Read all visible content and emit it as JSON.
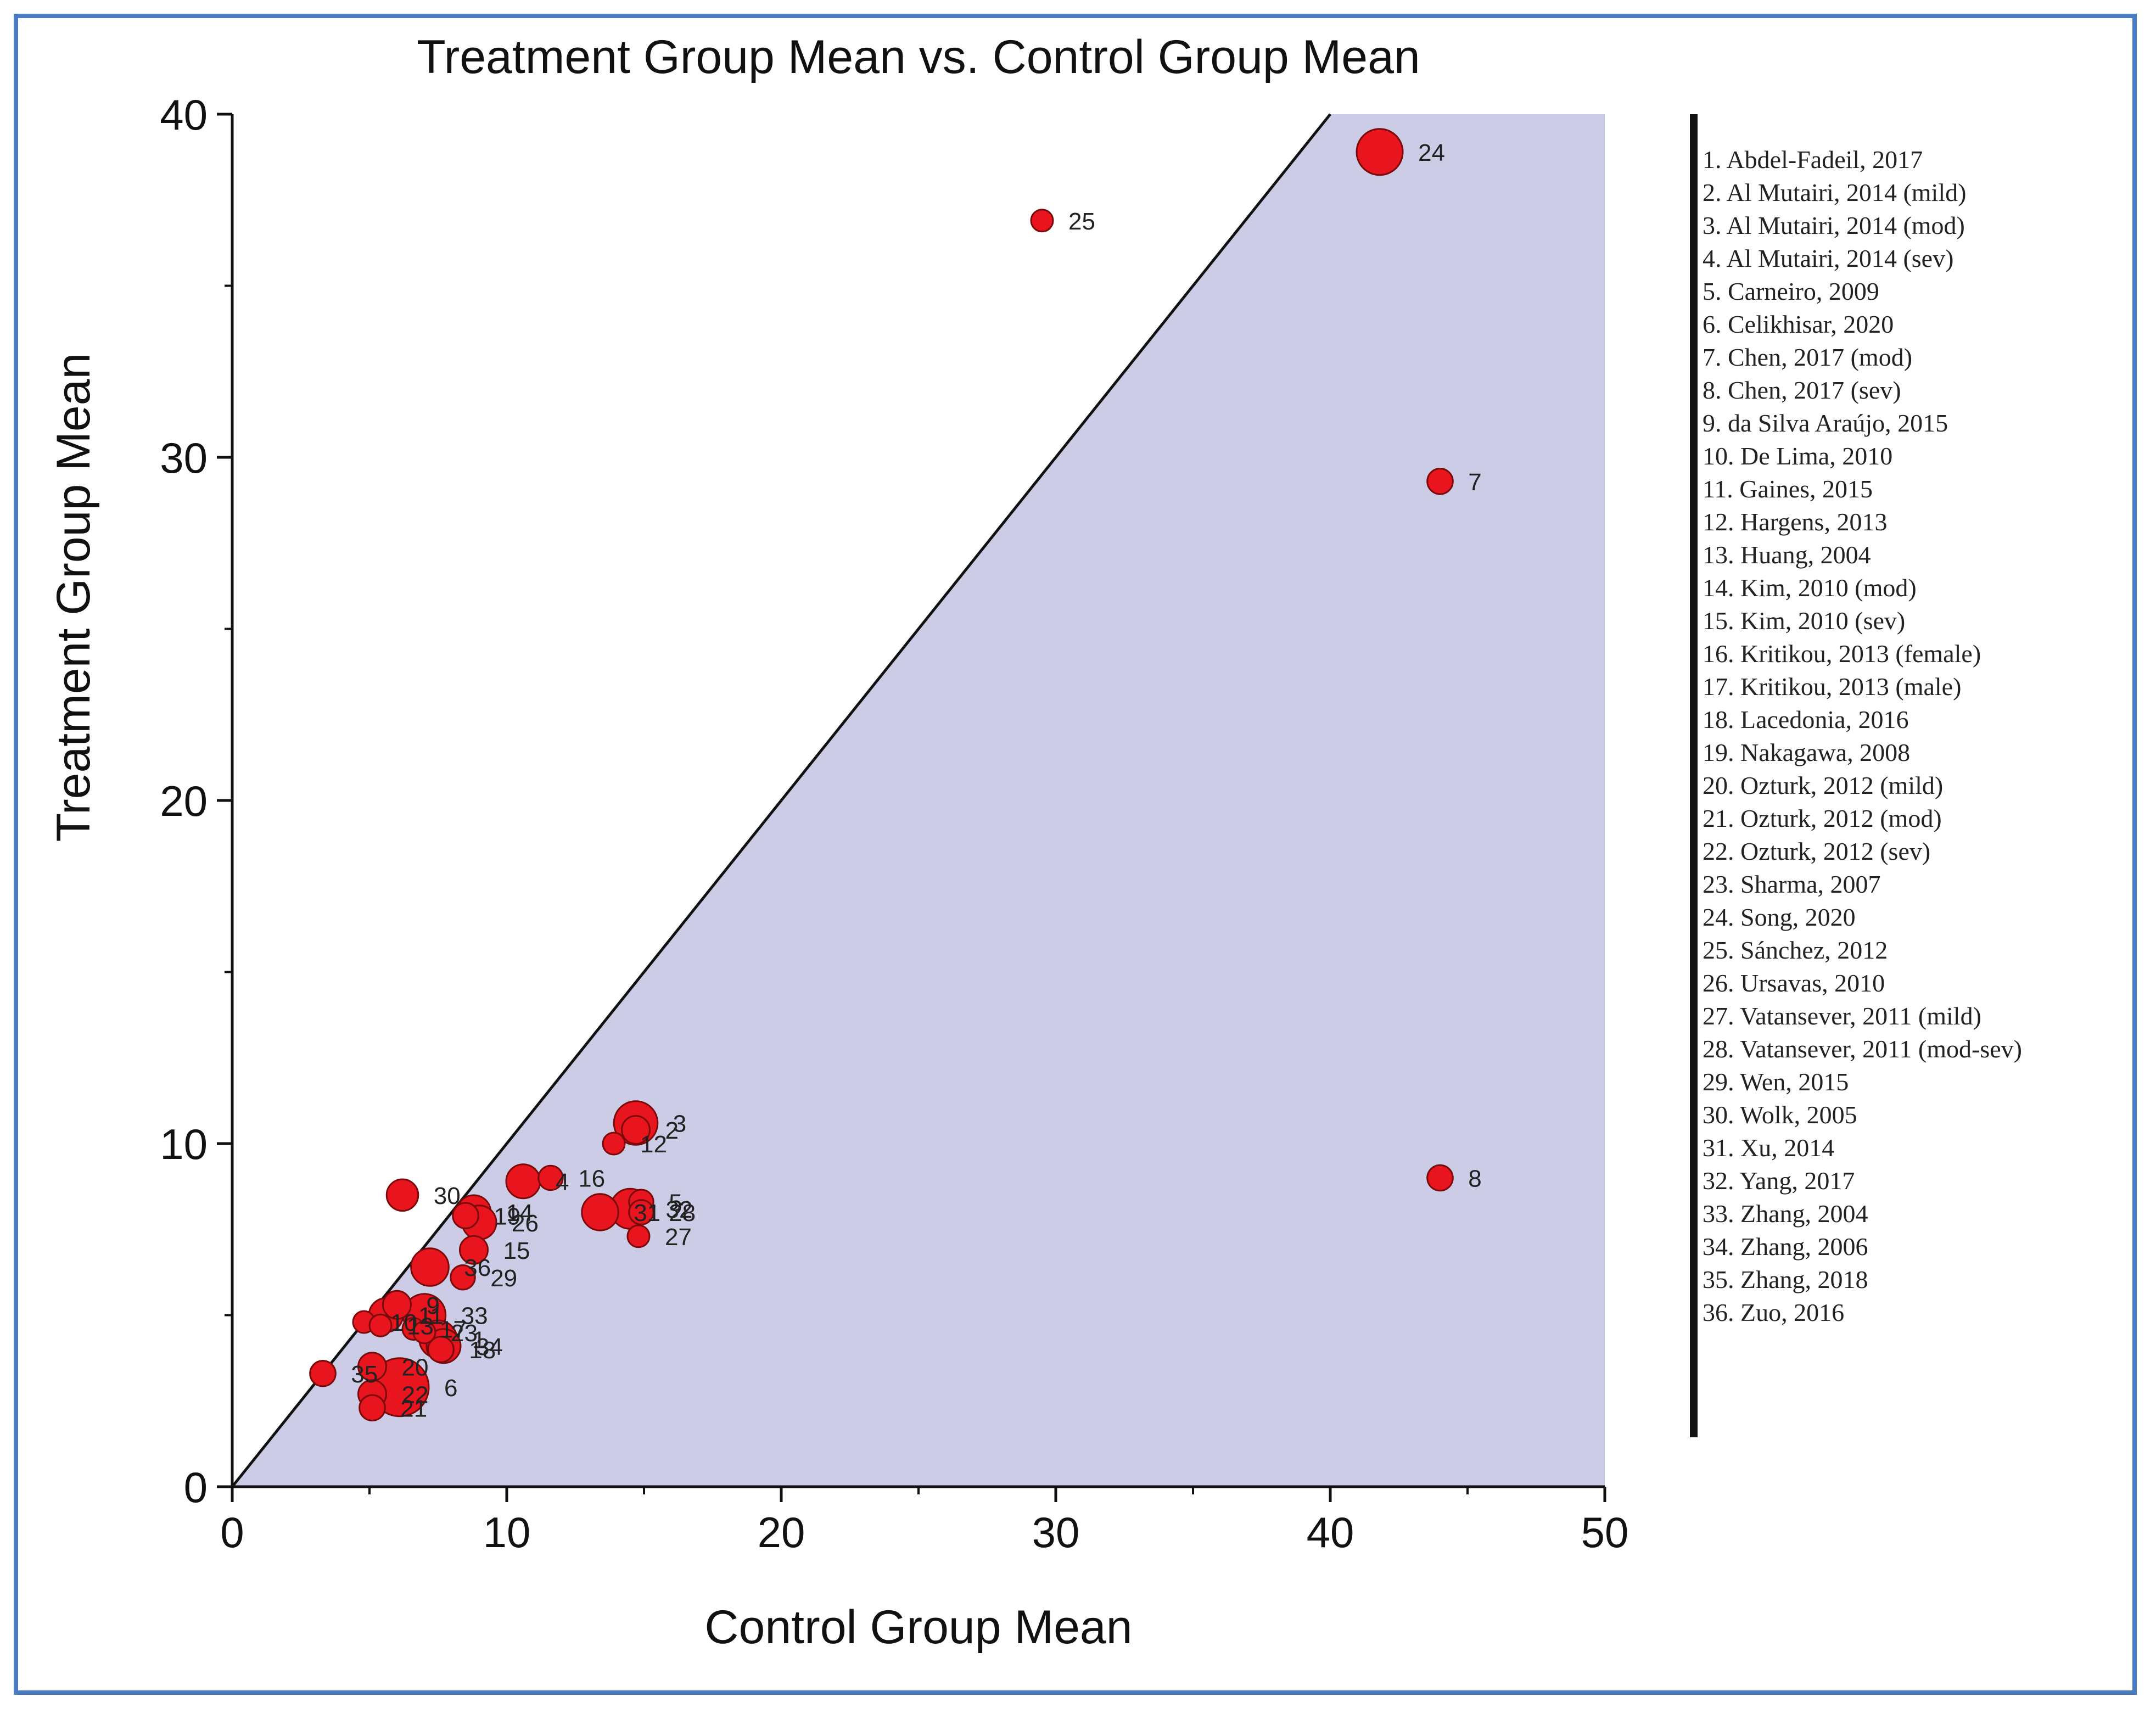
{
  "chart_data": {
    "type": "scatter",
    "title": "Treatment Group Mean vs. Control Group Mean",
    "xlabel": "Control Group Mean",
    "ylabel": "Treatment Group Mean",
    "xlim": [
      0,
      50
    ],
    "ylim": [
      0,
      40
    ],
    "xticks": [
      0,
      10,
      20,
      30,
      40,
      50
    ],
    "yticks": [
      0,
      10,
      20,
      30,
      40
    ],
    "reference_line": "y = x",
    "shaded_region": "below y = x",
    "colors": {
      "marker": "#e8141e",
      "marker_edge": "#7a0a0a",
      "shade": "#cccce6",
      "line": "#111111"
    },
    "points": [
      {
        "label": "24",
        "x": 41.8,
        "y": 38.9,
        "size": 3
      },
      {
        "label": "25",
        "x": 29.5,
        "y": 36.9,
        "size": 1
      },
      {
        "label": "7",
        "x": 44.0,
        "y": 29.3,
        "size": 1.3
      },
      {
        "label": "8",
        "x": 44.0,
        "y": 9.0,
        "size": 1.3
      },
      {
        "label": "3",
        "x": 14.7,
        "y": 10.6,
        "size": 2.8
      },
      {
        "label": "2",
        "x": 14.7,
        "y": 10.4,
        "size": 1.5
      },
      {
        "label": "12",
        "x": 13.9,
        "y": 10.0,
        "size": 1
      },
      {
        "label": "4",
        "x": 10.6,
        "y": 8.9,
        "size": 2
      },
      {
        "label": "16",
        "x": 11.6,
        "y": 9.0,
        "size": 1.2
      },
      {
        "label": "30",
        "x": 6.2,
        "y": 8.5,
        "size": 1.8
      },
      {
        "label": "5",
        "x": 14.9,
        "y": 8.3,
        "size": 1.2
      },
      {
        "label": "32",
        "x": 14.5,
        "y": 8.1,
        "size": 2.5
      },
      {
        "label": "31",
        "x": 13.4,
        "y": 8.0,
        "size": 2.2
      },
      {
        "label": "28",
        "x": 14.9,
        "y": 8.0,
        "size": 1.2
      },
      {
        "label": "27",
        "x": 14.8,
        "y": 7.3,
        "size": 1
      },
      {
        "label": "14",
        "x": 8.8,
        "y": 8.0,
        "size": 2
      },
      {
        "label": "19",
        "x": 8.5,
        "y": 7.9,
        "size": 1.3
      },
      {
        "label": "26",
        "x": 9.0,
        "y": 7.7,
        "size": 2
      },
      {
        "label": "15",
        "x": 8.8,
        "y": 6.9,
        "size": 1.5
      },
      {
        "label": "36",
        "x": 7.2,
        "y": 6.4,
        "size": 2.3
      },
      {
        "label": "29",
        "x": 8.4,
        "y": 6.1,
        "size": 1.2
      },
      {
        "label": "9",
        "x": 6.0,
        "y": 5.3,
        "size": 1.5
      },
      {
        "label": "33",
        "x": 7.0,
        "y": 5.0,
        "size": 2.7
      },
      {
        "label": "11",
        "x": 5.6,
        "y": 5.0,
        "size": 2
      },
      {
        "label": "10",
        "x": 4.8,
        "y": 4.8,
        "size": 1
      },
      {
        "label": "13",
        "x": 5.4,
        "y": 4.7,
        "size": 1
      },
      {
        "label": "17",
        "x": 6.6,
        "y": 4.6,
        "size": 1
      },
      {
        "label": "23",
        "x": 7.0,
        "y": 4.5,
        "size": 1
      },
      {
        "label": "1",
        "x": 7.5,
        "y": 4.3,
        "size": 2.3
      },
      {
        "label": "34",
        "x": 7.7,
        "y": 4.1,
        "size": 2
      },
      {
        "label": "18",
        "x": 7.6,
        "y": 4.0,
        "size": 1.3
      },
      {
        "label": "35",
        "x": 3.3,
        "y": 3.3,
        "size": 1.3
      },
      {
        "label": "20",
        "x": 5.1,
        "y": 3.5,
        "size": 1.5
      },
      {
        "label": "6",
        "x": 6.1,
        "y": 2.9,
        "size": 4
      },
      {
        "label": "22",
        "x": 5.1,
        "y": 2.7,
        "size": 1.5
      },
      {
        "label": "21",
        "x": 5.1,
        "y": 2.3,
        "size": 1.3
      }
    ],
    "legend": [
      "1. Abdel-Fadeil, 2017",
      "2. Al Mutairi, 2014 (mild)",
      "3. Al Mutairi, 2014 (mod)",
      "4. Al Mutairi, 2014 (sev)",
      "5. Carneiro, 2009",
      "6. Celikhisar, 2020",
      "7. Chen, 2017 (mod)",
      "8. Chen, 2017 (sev)",
      "9. da Silva Araújo, 2015",
      "10. De Lima, 2010",
      "11. Gaines, 2015",
      "12. Hargens, 2013",
      "13. Huang, 2004",
      "14. Kim, 2010 (mod)",
      "15.  Kim, 2010 (sev)",
      "16. Kritikou, 2013 (female)",
      "17. Kritikou, 2013 (male)",
      "18. Lacedonia, 2016",
      "19. Nakagawa, 2008",
      "20. Ozturk, 2012 (mild)",
      "21. Ozturk, 2012 (mod)",
      "22. Ozturk, 2012 (sev)",
      "23. Sharma, 2007",
      "24. Song, 2020",
      "25. Sánchez, 2012",
      "26. Ursavas, 2010",
      "27. Vatansever, 2011 (mild)",
      "28. Vatansever, 2011 (mod-sev)",
      "29. Wen, 2015",
      "30. Wolk, 2005",
      "31. Xu, 2014",
      "32. Yang, 2017",
      "33. Zhang, 2004",
      "34. Zhang, 2006",
      "35. Zhang, 2018",
      "36. Zuo, 2016"
    ]
  }
}
